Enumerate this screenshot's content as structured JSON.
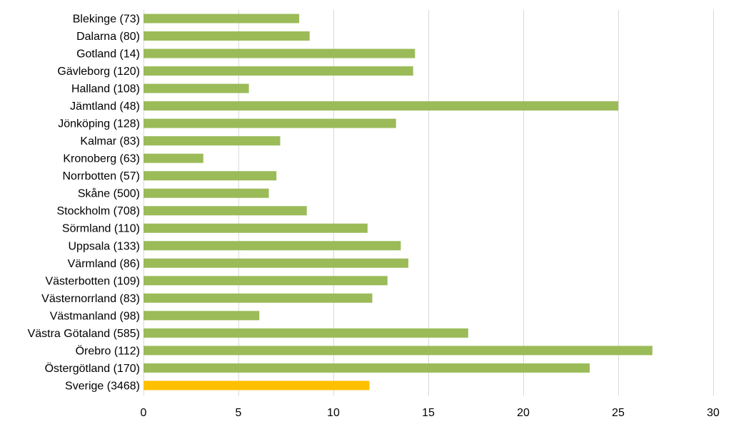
{
  "chart_data": {
    "type": "bar",
    "orientation": "horizontal",
    "categories": [
      "Blekinge (73)",
      "Dalarna (80)",
      "Gotland (14)",
      "Gävleborg (120)",
      "Halland (108)",
      "Jämtland (48)",
      "Jönköping (128)",
      "Kalmar (83)",
      "Kronoberg (63)",
      "Norrbotten (57)",
      "Skåne (500)",
      "Stockholm (708)",
      "Sörmland (110)",
      "Uppsala (133)",
      "Värmland (86)",
      "Västerbotten (109)",
      "Västernorrland (83)",
      "Västmanland (98)",
      "Västra Götaland (585)",
      "Örebro (112)",
      "Östergötland (170)",
      "Sverige (3468)"
    ],
    "values": [
      8.2,
      8.75,
      14.3,
      14.2,
      5.55,
      25.0,
      13.3,
      7.2,
      3.15,
      7.0,
      6.6,
      8.6,
      11.8,
      13.55,
      13.95,
      12.85,
      12.05,
      6.1,
      17.1,
      26.8,
      23.5,
      11.9
    ],
    "xlim": [
      0,
      30
    ],
    "xticks": [
      "0",
      "5",
      "10",
      "15",
      "20",
      "25",
      "30"
    ],
    "xtick_values": [
      0,
      5,
      10,
      15,
      20,
      25,
      30
    ],
    "grid": "vertical",
    "colors": {
      "bar": "#9bbb59",
      "highlight": "#ffc000",
      "grid": "#d9d9d9",
      "text": "#000000"
    },
    "highlight_index": 21
  }
}
